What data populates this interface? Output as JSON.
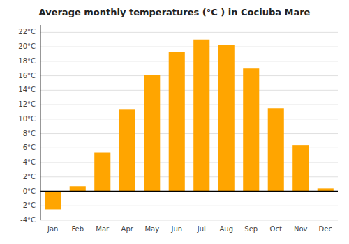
{
  "chart_data": {
    "type": "bar",
    "title": "Average monthly temperatures (°C ) in Cociuba Mare",
    "categories": [
      "Jan",
      "Feb",
      "Mar",
      "Apr",
      "May",
      "Jun",
      "Jul",
      "Aug",
      "Sep",
      "Oct",
      "Nov",
      "Dec"
    ],
    "values": [
      -2.5,
      0.7,
      5.4,
      11.3,
      16.1,
      19.3,
      21.0,
      20.3,
      17.0,
      11.5,
      6.4,
      0.4
    ],
    "color": "#FFA500",
    "ylim": [
      -4,
      23
    ],
    "yticks": [
      {
        "value": -4,
        "label": "-4°C"
      },
      {
        "value": -2,
        "label": "-2°C"
      },
      {
        "value": 0,
        "label": "0°C"
      },
      {
        "value": 2,
        "label": "2°C"
      },
      {
        "value": 4,
        "label": "4°C"
      },
      {
        "value": 6,
        "label": "6°C"
      },
      {
        "value": 8,
        "label": "8°C"
      },
      {
        "value": 10,
        "label": "10°C"
      },
      {
        "value": 12,
        "label": "12°C"
      },
      {
        "value": 14,
        "label": "14°C"
      },
      {
        "value": 16,
        "label": "16°C"
      },
      {
        "value": 18,
        "label": "18°C"
      },
      {
        "value": 20,
        "label": "20°C"
      },
      {
        "value": 22,
        "label": "22°C"
      }
    ],
    "grid": true
  }
}
